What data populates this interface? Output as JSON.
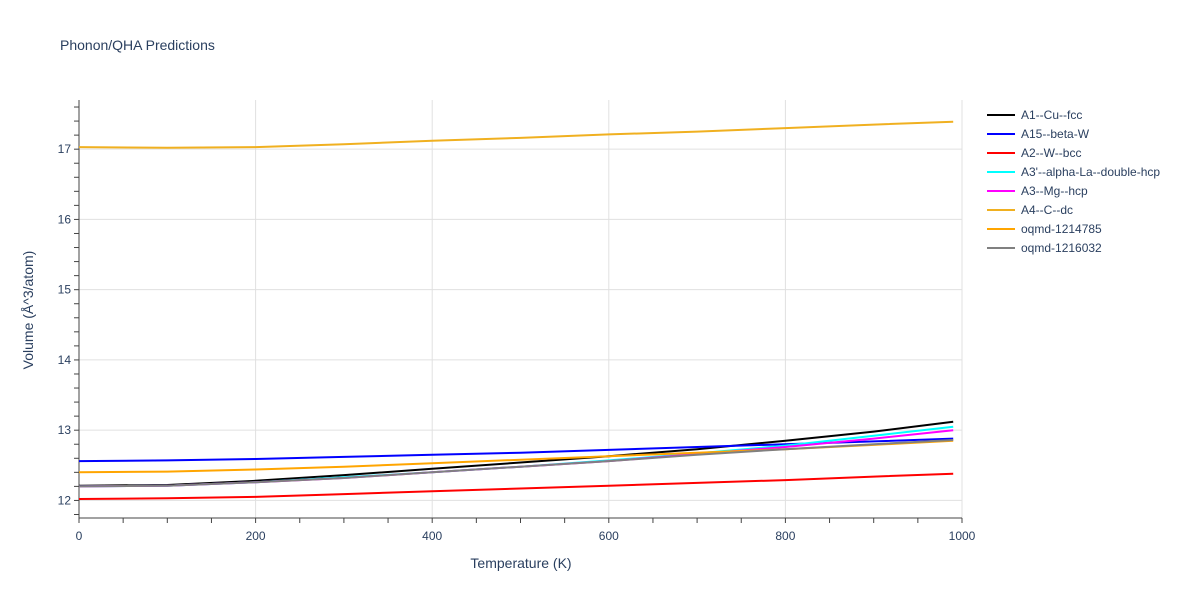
{
  "chart_data": {
    "type": "line",
    "title": "Phonon/QHA Predictions",
    "xlabel": "Temperature (K)",
    "ylabel": "Volume (Å^3/atom)",
    "xlim": [
      0,
      1000
    ],
    "ylim": [
      11.75,
      17.7
    ],
    "xticks": [
      0,
      200,
      400,
      600,
      800,
      1000
    ],
    "yticks": [
      12,
      13,
      14,
      15,
      16,
      17
    ],
    "grid": true,
    "legend_position": "right",
    "x": [
      0,
      100,
      200,
      300,
      400,
      500,
      600,
      700,
      800,
      900,
      990
    ],
    "series": [
      {
        "name": "A1--Cu--fcc",
        "color": "#000000",
        "values": [
          12.21,
          12.22,
          12.28,
          12.36,
          12.45,
          12.54,
          12.63,
          12.73,
          12.85,
          12.98,
          13.12
        ]
      },
      {
        "name": "A15--beta-W",
        "color": "#0000ff",
        "values": [
          12.56,
          12.57,
          12.59,
          12.62,
          12.65,
          12.68,
          12.72,
          12.76,
          12.8,
          12.84,
          12.88
        ]
      },
      {
        "name": "A2--W--bcc",
        "color": "#ff0000",
        "values": [
          12.02,
          12.03,
          12.05,
          12.09,
          12.13,
          12.17,
          12.21,
          12.25,
          12.29,
          12.34,
          12.38
        ]
      },
      {
        "name": "A3'--alpha-La--double-hcp",
        "color": "#00ffff",
        "values": [
          12.2,
          12.21,
          12.26,
          12.33,
          12.4,
          12.48,
          12.57,
          12.67,
          12.78,
          12.92,
          13.05
        ]
      },
      {
        "name": "A3--Mg--hcp",
        "color": "#ff00ff",
        "values": [
          12.2,
          12.21,
          12.26,
          12.32,
          12.4,
          12.48,
          12.56,
          12.66,
          12.76,
          12.88,
          13.0
        ]
      },
      {
        "name": "A4--C--dc",
        "color": "#f0b020",
        "values": [
          17.03,
          17.02,
          17.03,
          17.07,
          17.12,
          17.16,
          17.21,
          17.25,
          17.3,
          17.35,
          17.39
        ]
      },
      {
        "name": "oqmd-1214785",
        "color": "#ffa500",
        "values": [
          12.4,
          12.41,
          12.44,
          12.48,
          12.53,
          12.58,
          12.63,
          12.68,
          12.73,
          12.79,
          12.85
        ]
      },
      {
        "name": "oqmd-1216032",
        "color": "#808080",
        "values": [
          12.2,
          12.21,
          12.26,
          12.32,
          12.4,
          12.48,
          12.56,
          12.65,
          12.73,
          12.8,
          12.86
        ]
      }
    ]
  }
}
